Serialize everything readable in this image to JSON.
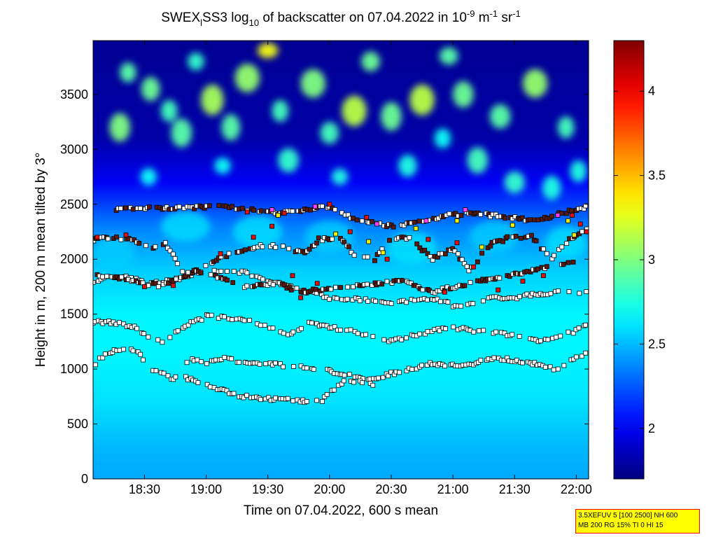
{
  "chart_data": {
    "type": "heatmap",
    "title": {
      "prefix": "SWEX",
      "sub_l": "l",
      "mid": "SS3 log",
      "sub_10": "10",
      "suffix1": " of backscatter on 07.04.2022 in 10",
      "sup_neg9": "-9",
      "unit_m": " m",
      "sup_neg1a": "-1",
      "unit_sr": " sr",
      "sup_neg1b": "-1"
    },
    "xlabel": "Time on 07.04.2022, 600 s mean",
    "ylabel": "Height in m, 200 m mean tilted by 3°",
    "x_range_min": [
      1085,
      1326
    ],
    "ylim": [
      0,
      3990
    ],
    "colorbar_range": [
      1.7,
      4.3
    ],
    "x_ticks": [
      {
        "label": "18:30",
        "min": 1110
      },
      {
        "label": "19:00",
        "min": 1140
      },
      {
        "label": "19:30",
        "min": 1170
      },
      {
        "label": "20:00",
        "min": 1200
      },
      {
        "label": "20:30",
        "min": 1230
      },
      {
        "label": "21:00",
        "min": 1260
      },
      {
        "label": "21:30",
        "min": 1290
      },
      {
        "label": "22:00",
        "min": 1320
      }
    ],
    "y_ticks": [
      {
        "label": "0",
        "v": 0
      },
      {
        "label": "500",
        "v": 500
      },
      {
        "label": "1000",
        "v": 1000
      },
      {
        "label": "1500",
        "v": 1500
      },
      {
        "label": "2000",
        "v": 2000
      },
      {
        "label": "2500",
        "v": 2500
      },
      {
        "label": "3000",
        "v": 3000
      },
      {
        "label": "3500",
        "v": 3500
      }
    ],
    "colorbar_ticks": [
      {
        "label": "2",
        "v": 2
      },
      {
        "label": "2.5",
        "v": 2.5
      },
      {
        "label": "3",
        "v": 3
      },
      {
        "label": "3.5",
        "v": 3.5
      },
      {
        "label": "4",
        "v": 4
      }
    ],
    "layers": [
      {
        "pts": [
          [
            1085,
            1800
          ],
          [
            1095,
            1850
          ],
          [
            1105,
            1820
          ],
          [
            1112,
            1780
          ],
          [
            1122,
            1800
          ],
          [
            1130,
            1850
          ],
          [
            1140,
            1880
          ],
          [
            1150,
            1900
          ],
          [
            1160,
            1880
          ],
          [
            1170,
            1800
          ],
          [
            1180,
            1750
          ],
          [
            1190,
            1700
          ],
          [
            1200,
            1650
          ],
          [
            1210,
            1640
          ],
          [
            1220,
            1620
          ],
          [
            1230,
            1600
          ],
          [
            1240,
            1620
          ],
          [
            1250,
            1650
          ],
          [
            1260,
            1580
          ],
          [
            1270,
            1600
          ],
          [
            1280,
            1650
          ],
          [
            1290,
            1650
          ],
          [
            1300,
            1680
          ],
          [
            1310,
            1700
          ],
          [
            1320,
            1700
          ],
          [
            1326,
            1720
          ]
        ],
        "color": "white"
      },
      {
        "pts": [
          [
            1085,
            1430
          ],
          [
            1095,
            1420
          ],
          [
            1105,
            1380
          ],
          [
            1112,
            1300
          ],
          [
            1120,
            1250
          ],
          [
            1130,
            1400
          ],
          [
            1140,
            1480
          ],
          [
            1150,
            1470
          ],
          [
            1160,
            1450
          ],
          [
            1170,
            1380
          ],
          [
            1180,
            1300
          ],
          [
            1190,
            1420
          ],
          [
            1200,
            1380
          ],
          [
            1210,
            1350
          ],
          [
            1220,
            1300
          ],
          [
            1230,
            1250
          ],
          [
            1240,
            1300
          ],
          [
            1250,
            1350
          ],
          [
            1260,
            1380
          ],
          [
            1270,
            1350
          ],
          [
            1280,
            1330
          ],
          [
            1290,
            1300
          ],
          [
            1300,
            1260
          ],
          [
            1310,
            1280
          ],
          [
            1320,
            1350
          ],
          [
            1326,
            1400
          ]
        ],
        "color": "white"
      },
      {
        "pts": [
          [
            1086,
            1050
          ],
          [
            1092,
            1150
          ],
          [
            1100,
            1180
          ],
          [
            1107,
            1170
          ],
          [
            1112,
            1020
          ],
          [
            1118,
            960
          ],
          [
            1124,
            900
          ],
          [
            1132,
            1100
          ],
          [
            1140,
            1050
          ],
          [
            1150,
            1100
          ],
          [
            1160,
            1050
          ],
          [
            1170,
            1050
          ],
          [
            1180,
            1030
          ],
          [
            1190,
            1020
          ],
          [
            1200,
            980
          ],
          [
            1210,
            950
          ],
          [
            1220,
            900
          ],
          [
            1230,
            960
          ],
          [
            1240,
            1000
          ],
          [
            1250,
            1050
          ],
          [
            1260,
            1030
          ],
          [
            1270,
            1050
          ],
          [
            1280,
            1100
          ],
          [
            1290,
            1080
          ],
          [
            1300,
            1050
          ],
          [
            1310,
            1000
          ],
          [
            1320,
            1100
          ],
          [
            1326,
            1150
          ]
        ],
        "color": "white"
      },
      {
        "pts": [
          [
            1130,
            920
          ],
          [
            1156,
            760
          ],
          [
            1162,
            740
          ],
          [
            1195,
            700
          ],
          [
            1200,
            780
          ],
          [
            1208,
            900
          ],
          [
            1215,
            880
          ],
          [
            1222,
            860
          ]
        ],
        "color": "white"
      },
      {
        "pts": [
          [
            1085,
            2180
          ],
          [
            1095,
            2200
          ],
          [
            1105,
            2180
          ],
          [
            1112,
            2100
          ],
          [
            1120,
            2150
          ],
          [
            1130,
            1850
          ],
          [
            1140,
            1950
          ],
          [
            1150,
            2030
          ],
          [
            1160,
            2100
          ],
          [
            1170,
            2130
          ],
          [
            1180,
            2100
          ],
          [
            1188,
            2050
          ],
          [
            1195,
            2180
          ],
          [
            1205,
            2200
          ],
          [
            1212,
            2050
          ],
          [
            1222,
            2000
          ],
          [
            1230,
            2200
          ],
          [
            1240,
            2180
          ],
          [
            1250,
            2000
          ],
          [
            1260,
            2100
          ],
          [
            1268,
            1900
          ],
          [
            1278,
            2130
          ],
          [
            1288,
            2200
          ],
          [
            1298,
            2210
          ],
          [
            1308,
            2000
          ],
          [
            1318,
            2200
          ],
          [
            1326,
            2300
          ]
        ],
        "color": "dark"
      },
      {
        "pts": [
          [
            1087,
            1850
          ],
          [
            1100,
            1830
          ],
          [
            1107,
            1780
          ],
          [
            1118,
            1760
          ],
          [
            1135,
            1900
          ],
          [
            1160,
            1750
          ],
          [
            1176,
            1780
          ],
          [
            1185,
            1700
          ],
          [
            1235,
            1800
          ],
          [
            1250,
            1700
          ],
          [
            1272,
            1800
          ],
          [
            1300,
            1900
          ],
          [
            1315,
            1950
          ],
          [
            1322,
            2000
          ]
        ],
        "color": "dark"
      },
      {
        "pts": [
          [
            1096,
            2450
          ],
          [
            1103,
            2460
          ],
          [
            1150,
            2480
          ],
          [
            1160,
            2450
          ],
          [
            1175,
            2420
          ],
          [
            1200,
            2480
          ],
          [
            1210,
            2380
          ],
          [
            1230,
            2300
          ],
          [
            1240,
            2330
          ],
          [
            1258,
            2400
          ],
          [
            1270,
            2420
          ],
          [
            1300,
            2350
          ],
          [
            1320,
            2450
          ],
          [
            1326,
            2480
          ]
        ],
        "color": "dark"
      }
    ],
    "red_points": [
      [
        1087,
        2200
      ],
      [
        1101,
        2220
      ],
      [
        1110,
        1750
      ],
      [
        1124,
        1760
      ],
      [
        1147,
        2050
      ],
      [
        1160,
        2430
      ],
      [
        1163,
        2200
      ],
      [
        1172,
        2300
      ],
      [
        1178,
        2420
      ],
      [
        1182,
        1850
      ],
      [
        1186,
        1650
      ],
      [
        1194,
        1780
      ],
      [
        1200,
        2500
      ],
      [
        1210,
        2250
      ],
      [
        1218,
        2380
      ],
      [
        1228,
        2000
      ],
      [
        1248,
        2180
      ],
      [
        1256,
        1700
      ],
      [
        1262,
        2150
      ],
      [
        1270,
        1930
      ],
      [
        1282,
        1720
      ],
      [
        1294,
        1800
      ],
      [
        1304,
        1850
      ],
      [
        1318,
        2400
      ],
      [
        1322,
        2320
      ],
      [
        1325,
        2250
      ]
    ],
    "yellow_points": [
      [
        1175,
        2400
      ],
      [
        1203,
        2230
      ],
      [
        1219,
        2160
      ],
      [
        1226,
        2060
      ],
      [
        1242,
        2280
      ],
      [
        1262,
        2350
      ],
      [
        1274,
        2110
      ],
      [
        1289,
        2310
      ],
      [
        1316,
        2350
      ],
      [
        1319,
        2220
      ]
    ],
    "magenta_points": [
      [
        1172,
        2450
      ],
      [
        1193,
        2480
      ],
      [
        1223,
        2320
      ],
      [
        1247,
        2350
      ],
      [
        1266,
        2450
      ],
      [
        1311,
        2400
      ]
    ],
    "blobs": [
      {
        "x": 1098,
        "y": 3200,
        "w": 10,
        "h": 260,
        "v": 3.0
      },
      {
        "x": 1102,
        "y": 3700,
        "w": 8,
        "h": 180,
        "v": 2.9
      },
      {
        "x": 1113,
        "y": 3550,
        "w": 9,
        "h": 220,
        "v": 2.95
      },
      {
        "x": 1122,
        "y": 3350,
        "w": 8,
        "h": 200,
        "v": 2.85
      },
      {
        "x": 1128,
        "y": 3150,
        "w": 10,
        "h": 260,
        "v": 2.9
      },
      {
        "x": 1135,
        "y": 3800,
        "w": 8,
        "h": 160,
        "v": 2.8
      },
      {
        "x": 1143,
        "y": 3450,
        "w": 11,
        "h": 280,
        "v": 3.1
      },
      {
        "x": 1152,
        "y": 3200,
        "w": 9,
        "h": 240,
        "v": 2.9
      },
      {
        "x": 1160,
        "y": 3650,
        "w": 12,
        "h": 260,
        "v": 3.05
      },
      {
        "x": 1170,
        "y": 3900,
        "w": 10,
        "h": 140,
        "v": 3.3
      },
      {
        "x": 1176,
        "y": 3350,
        "w": 8,
        "h": 200,
        "v": 2.85
      },
      {
        "x": 1180,
        "y": 2900,
        "w": 10,
        "h": 220,
        "v": 2.8
      },
      {
        "x": 1192,
        "y": 3600,
        "w": 12,
        "h": 260,
        "v": 3.0
      },
      {
        "x": 1200,
        "y": 3150,
        "w": 9,
        "h": 200,
        "v": 2.85
      },
      {
        "x": 1212,
        "y": 3350,
        "w": 12,
        "h": 280,
        "v": 3.15
      },
      {
        "x": 1220,
        "y": 3800,
        "w": 9,
        "h": 180,
        "v": 2.95
      },
      {
        "x": 1230,
        "y": 3300,
        "w": 10,
        "h": 260,
        "v": 2.95
      },
      {
        "x": 1238,
        "y": 2850,
        "w": 9,
        "h": 200,
        "v": 2.75
      },
      {
        "x": 1245,
        "y": 3450,
        "w": 12,
        "h": 280,
        "v": 3.15
      },
      {
        "x": 1258,
        "y": 3850,
        "w": 9,
        "h": 160,
        "v": 2.9
      },
      {
        "x": 1265,
        "y": 3500,
        "w": 10,
        "h": 240,
        "v": 2.95
      },
      {
        "x": 1272,
        "y": 2900,
        "w": 10,
        "h": 240,
        "v": 2.85
      },
      {
        "x": 1283,
        "y": 3300,
        "w": 10,
        "h": 220,
        "v": 2.9
      },
      {
        "x": 1290,
        "y": 2700,
        "w": 10,
        "h": 200,
        "v": 2.8
      },
      {
        "x": 1300,
        "y": 3600,
        "w": 12,
        "h": 260,
        "v": 3.05
      },
      {
        "x": 1308,
        "y": 2650,
        "w": 9,
        "h": 220,
        "v": 2.75
      },
      {
        "x": 1315,
        "y": 3200,
        "w": 8,
        "h": 200,
        "v": 2.85
      },
      {
        "x": 1321,
        "y": 2800,
        "w": 8,
        "h": 200,
        "v": 2.75
      },
      {
        "x": 1112,
        "y": 2750,
        "w": 8,
        "h": 160,
        "v": 2.7
      },
      {
        "x": 1148,
        "y": 2850,
        "w": 8,
        "h": 150,
        "v": 2.7
      },
      {
        "x": 1205,
        "y": 2750,
        "w": 8,
        "h": 150,
        "v": 2.75
      },
      {
        "x": 1255,
        "y": 3100,
        "w": 8,
        "h": 180,
        "v": 2.7
      }
    ],
    "haze": [
      {
        "x": 1095,
        "y": 2050,
        "w": 10,
        "h": 320,
        "v": 2.55
      },
      {
        "x": 1130,
        "y": 2300,
        "w": 12,
        "h": 280,
        "v": 2.6
      },
      {
        "x": 1165,
        "y": 2250,
        "w": 12,
        "h": 300,
        "v": 2.6
      },
      {
        "x": 1200,
        "y": 2200,
        "w": 12,
        "h": 300,
        "v": 2.55
      },
      {
        "x": 1240,
        "y": 2100,
        "w": 12,
        "h": 300,
        "v": 2.6
      },
      {
        "x": 1280,
        "y": 2200,
        "w": 12,
        "h": 300,
        "v": 2.55
      },
      {
        "x": 1315,
        "y": 2150,
        "w": 10,
        "h": 300,
        "v": 2.6
      }
    ]
  },
  "info_box": {
    "line1": "3.5XEFUV 5 [100 2500] NH 600",
    "line2": "MB 200 RG 15% TI 0 HI 15"
  }
}
